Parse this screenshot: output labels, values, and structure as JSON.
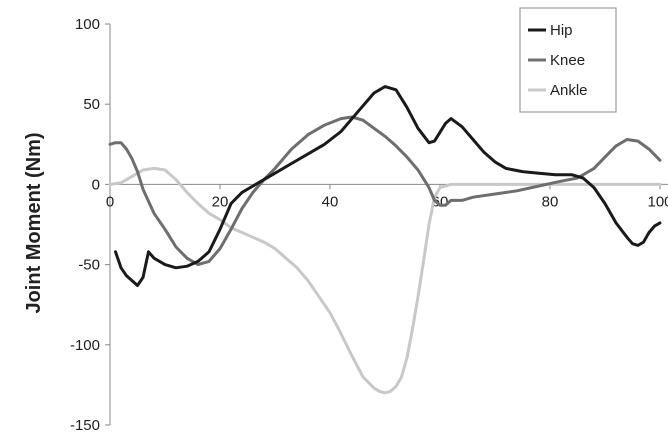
{
  "chart_data": {
    "type": "line",
    "title": "",
    "xlabel": "",
    "ylabel": "Joint Moment (Nm)",
    "xlim": [
      0,
      100
    ],
    "ylim": [
      -150,
      100
    ],
    "x_ticks": [
      0,
      20,
      40,
      60,
      80,
      100
    ],
    "x_tick_labels": [
      "0",
      "20",
      "40",
      "60",
      "80",
      "100"
    ],
    "y_ticks": [
      100,
      50,
      0,
      -50,
      -100,
      -150
    ],
    "y_tick_labels": [
      "100",
      "50",
      "0",
      "-50",
      "-100",
      "-150"
    ],
    "grid": false,
    "legend_position": "top-right",
    "series": [
      {
        "name": "Hip",
        "color": "#1a1a1a",
        "points": [
          [
            1,
            -42
          ],
          [
            2,
            -52
          ],
          [
            3,
            -57
          ],
          [
            4,
            -60
          ],
          [
            5,
            -63
          ],
          [
            6,
            -58
          ],
          [
            7,
            -42
          ],
          [
            8,
            -46
          ],
          [
            10,
            -50
          ],
          [
            12,
            -52
          ],
          [
            14,
            -51
          ],
          [
            16,
            -48
          ],
          [
            18,
            -42
          ],
          [
            20,
            -28
          ],
          [
            22,
            -12
          ],
          [
            24,
            -5
          ],
          [
            26,
            -1
          ],
          [
            28,
            3
          ],
          [
            30,
            7
          ],
          [
            33,
            13
          ],
          [
            36,
            19
          ],
          [
            39,
            25
          ],
          [
            42,
            33
          ],
          [
            45,
            45
          ],
          [
            48,
            57
          ],
          [
            50,
            61
          ],
          [
            52,
            59
          ],
          [
            54,
            48
          ],
          [
            56,
            35
          ],
          [
            58,
            26
          ],
          [
            59,
            27
          ],
          [
            61,
            38
          ],
          [
            62,
            41
          ],
          [
            64,
            36
          ],
          [
            66,
            28
          ],
          [
            68,
            20
          ],
          [
            70,
            14
          ],
          [
            72,
            10
          ],
          [
            75,
            8
          ],
          [
            78,
            7
          ],
          [
            81,
            6
          ],
          [
            84,
            6
          ],
          [
            86,
            4
          ],
          [
            88,
            -2
          ],
          [
            90,
            -12
          ],
          [
            92,
            -24
          ],
          [
            94,
            -33
          ],
          [
            95,
            -37
          ],
          [
            96,
            -38
          ],
          [
            97,
            -36
          ],
          [
            98,
            -30
          ],
          [
            99,
            -26
          ],
          [
            100,
            -24
          ]
        ]
      },
      {
        "name": "Knee",
        "color": "#6e6e6e",
        "points": [
          [
            0,
            25
          ],
          [
            1,
            26
          ],
          [
            2,
            26
          ],
          [
            3,
            22
          ],
          [
            4,
            16
          ],
          [
            5,
            8
          ],
          [
            6,
            -3
          ],
          [
            8,
            -18
          ],
          [
            10,
            -28
          ],
          [
            12,
            -39
          ],
          [
            14,
            -46
          ],
          [
            16,
            -50
          ],
          [
            18,
            -48
          ],
          [
            20,
            -40
          ],
          [
            22,
            -28
          ],
          [
            24,
            -15
          ],
          [
            26,
            -5
          ],
          [
            28,
            3
          ],
          [
            30,
            10
          ],
          [
            33,
            22
          ],
          [
            36,
            31
          ],
          [
            39,
            37
          ],
          [
            42,
            41
          ],
          [
            44,
            42
          ],
          [
            46,
            40
          ],
          [
            48,
            35
          ],
          [
            50,
            30
          ],
          [
            52,
            24
          ],
          [
            54,
            17
          ],
          [
            56,
            9
          ],
          [
            58,
            -2
          ],
          [
            59,
            -10
          ],
          [
            60,
            -13
          ],
          [
            61,
            -13
          ],
          [
            62,
            -10
          ],
          [
            64,
            -10
          ],
          [
            66,
            -8
          ],
          [
            70,
            -6
          ],
          [
            74,
            -4
          ],
          [
            78,
            -1
          ],
          [
            82,
            2
          ],
          [
            85,
            4
          ],
          [
            88,
            10
          ],
          [
            90,
            17
          ],
          [
            92,
            24
          ],
          [
            94,
            28
          ],
          [
            96,
            27
          ],
          [
            98,
            22
          ],
          [
            100,
            15
          ]
        ]
      },
      {
        "name": "Ankle",
        "color": "#c8c8c8",
        "points": [
          [
            0,
            0
          ],
          [
            2,
            1
          ],
          [
            4,
            5
          ],
          [
            6,
            9
          ],
          [
            8,
            10
          ],
          [
            10,
            9
          ],
          [
            12,
            3
          ],
          [
            14,
            -5
          ],
          [
            16,
            -12
          ],
          [
            18,
            -18
          ],
          [
            20,
            -22
          ],
          [
            22,
            -27
          ],
          [
            24,
            -30
          ],
          [
            26,
            -33
          ],
          [
            28,
            -36
          ],
          [
            30,
            -40
          ],
          [
            32,
            -46
          ],
          [
            34,
            -52
          ],
          [
            36,
            -60
          ],
          [
            38,
            -70
          ],
          [
            40,
            -80
          ],
          [
            42,
            -93
          ],
          [
            44,
            -107
          ],
          [
            46,
            -120
          ],
          [
            48,
            -127
          ],
          [
            49,
            -129
          ],
          [
            50,
            -130
          ],
          [
            51,
            -129
          ],
          [
            52,
            -126
          ],
          [
            53,
            -120
          ],
          [
            54,
            -108
          ],
          [
            55,
            -90
          ],
          [
            56,
            -70
          ],
          [
            57,
            -48
          ],
          [
            58,
            -25
          ],
          [
            59,
            -8
          ],
          [
            60,
            -2
          ],
          [
            62,
            0
          ],
          [
            66,
            0
          ],
          [
            70,
            0
          ],
          [
            80,
            0
          ],
          [
            90,
            0
          ],
          [
            100,
            0
          ]
        ]
      }
    ]
  }
}
